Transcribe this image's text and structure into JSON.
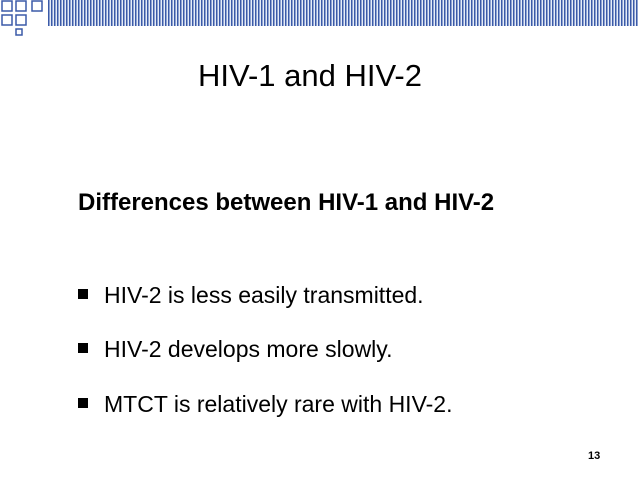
{
  "slide": {
    "title": "HIV-1 and HIV-2",
    "heading": "Differences between HIV-1 and HIV-2",
    "bullets": [
      "HIV-2 is less easily transmitted.",
      "HIV-2 develops more slowly.",
      "MTCT is relatively rare with HIV-2."
    ],
    "page_number": "13"
  }
}
